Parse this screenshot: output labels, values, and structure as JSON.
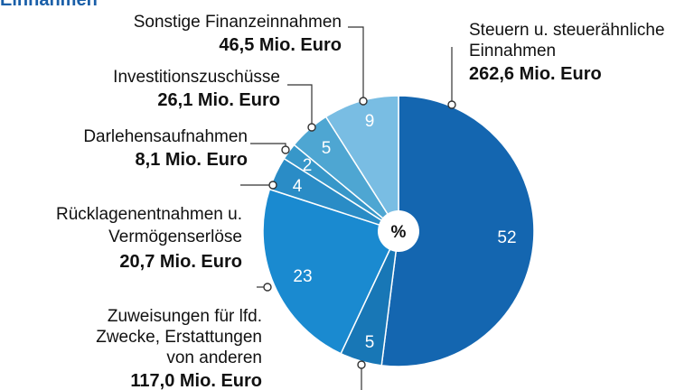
{
  "title": "Einnahmen",
  "chart_data": {
    "type": "pie",
    "center_label": "%",
    "slices": [
      {
        "name": "Steuern u. steuerähnliche Einnahmen",
        "lines": [
          "Steuern u. steuerähnliche",
          "Einnahmen"
        ],
        "value_text": "262,6 Mio. Euro",
        "value": 262.6,
        "percent": 52,
        "color": "#1466b0"
      },
      {
        "name": "",
        "lines": [],
        "value_text": "",
        "value": null,
        "percent": 5,
        "color": "#1877b6"
      },
      {
        "name": "Zuweisungen für lfd. Zwecke, Erstattungen von anderen",
        "lines": [
          "Zuweisungen für lfd.",
          "Zwecke, Erstattungen",
          "von anderen"
        ],
        "value_text": "117,0 Mio. Euro",
        "value": 117.0,
        "percent": 23,
        "color": "#1a8ad0"
      },
      {
        "name": "Rücklagenentnahmen u. Vermögenserlöse",
        "lines": [
          "Rücklagenentnahmen u.",
          "Vermögenserlöse"
        ],
        "value_text": "20,7 Mio. Euro",
        "value": 20.7,
        "percent": 4,
        "color": "#2a8cc6"
      },
      {
        "name": "Darlehensaufnahmen",
        "lines": [
          "Darlehensaufnahmen"
        ],
        "value_text": "8,1 Mio. Euro",
        "value": 8.1,
        "percent": 2,
        "color": "#3797c9"
      },
      {
        "name": "Investitionszuschüsse",
        "lines": [
          "Investitionszuschüsse"
        ],
        "value_text": "26,1 Mio. Euro",
        "value": 26.1,
        "percent": 5,
        "color": "#4ea6d2"
      },
      {
        "name": "Sonstige Finanzeinnahmen",
        "lines": [
          "Sonstige Finanzeinnahmen"
        ],
        "value_text": "46,5 Mio. Euro",
        "value": 46.5,
        "percent": 9,
        "color": "#79bde3"
      }
    ]
  }
}
